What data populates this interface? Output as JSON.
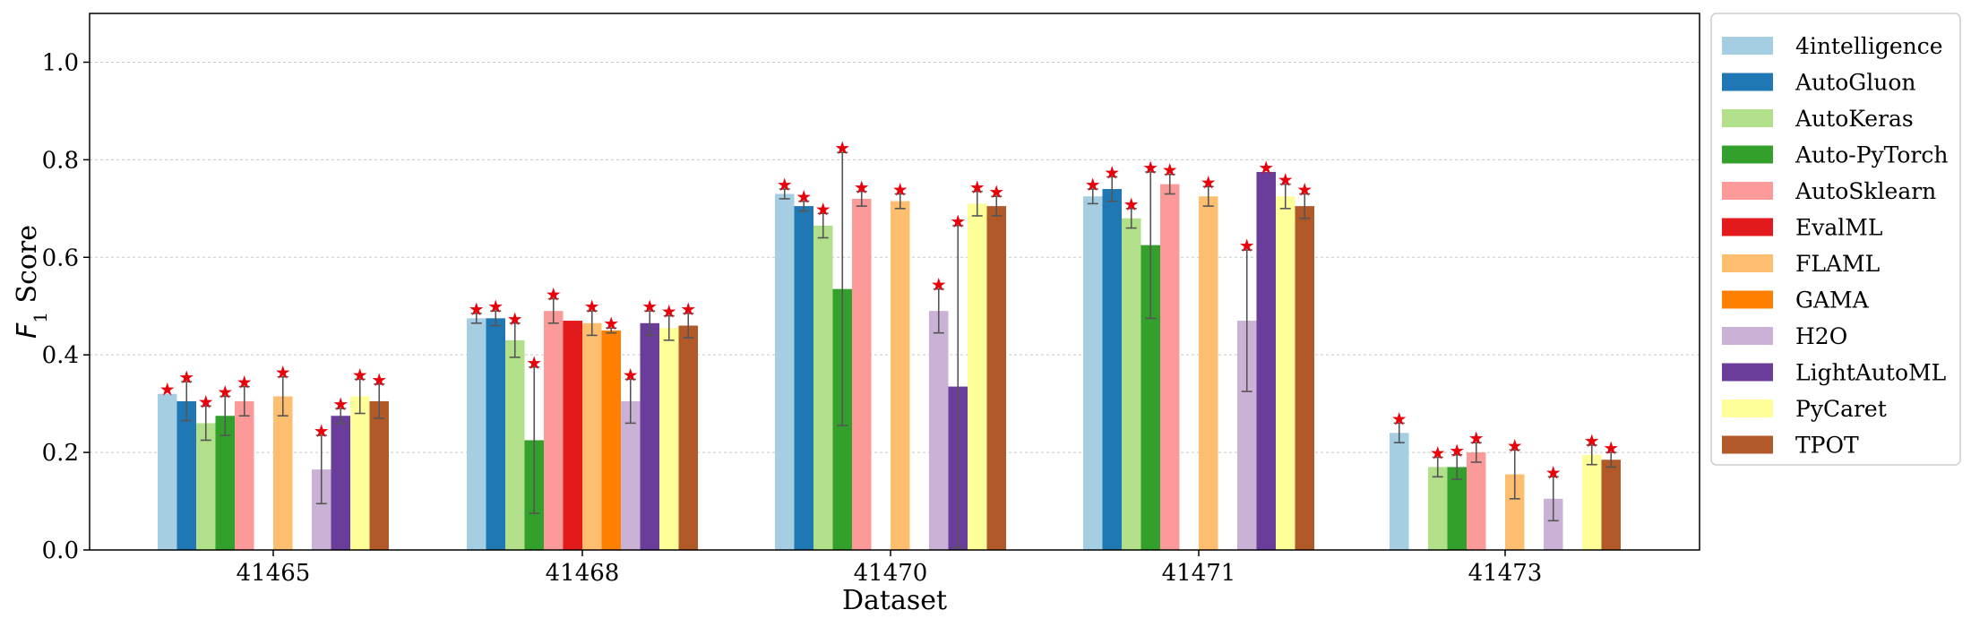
{
  "chart_data": {
    "type": "bar",
    "xlabel": "Dataset",
    "ylabel": "F",
    "ylabel_sub": "1",
    "ylabel_suffix": " Score",
    "ylim": [
      0,
      1.1
    ],
    "yticks": [
      0.0,
      0.2,
      0.4,
      0.6,
      0.8,
      1.0
    ],
    "ytick_labels": [
      "0.0",
      "0.2",
      "0.4",
      "0.6",
      "0.8",
      "1.0"
    ],
    "grid": "horizontal-dashed",
    "legend_position": "right",
    "categories": [
      "41465",
      "41468",
      "41470",
      "41471",
      "41473"
    ],
    "series": [
      {
        "name": "4intelligence",
        "color": "#a6cee3",
        "values": [
          0.32,
          0.475,
          0.73,
          0.725,
          0.24
        ],
        "errors": [
          0.0,
          0.01,
          0.01,
          0.015,
          0.02
        ],
        "stars": [
          true,
          true,
          true,
          true,
          true
        ]
      },
      {
        "name": "AutoGluon",
        "color": "#1f78b4",
        "values": [
          0.305,
          0.475,
          0.705,
          0.74,
          null
        ],
        "errors": [
          0.04,
          0.015,
          0.01,
          0.025,
          null
        ],
        "stars": [
          true,
          true,
          true,
          true,
          false
        ]
      },
      {
        "name": "AutoKeras",
        "color": "#b2df8a",
        "values": [
          0.26,
          0.43,
          0.665,
          0.68,
          0.17
        ],
        "errors": [
          0.035,
          0.035,
          0.025,
          0.02,
          0.02
        ],
        "stars": [
          true,
          true,
          true,
          true,
          true
        ]
      },
      {
        "name": "Auto-PyTorch",
        "color": "#33a02c",
        "values": [
          0.275,
          0.225,
          0.535,
          0.625,
          0.17
        ],
        "errors": [
          0.04,
          0.15,
          0.28,
          0.15,
          0.025
        ],
        "stars": [
          true,
          true,
          true,
          true,
          true
        ]
      },
      {
        "name": "AutoSklearn",
        "color": "#fb9a99",
        "values": [
          0.305,
          0.49,
          0.72,
          0.75,
          0.2
        ],
        "errors": [
          0.03,
          0.025,
          0.015,
          0.02,
          0.02
        ],
        "stars": [
          true,
          true,
          true,
          true,
          true
        ]
      },
      {
        "name": "EvalML",
        "color": "#e31a1c",
        "values": [
          null,
          0.47,
          null,
          null,
          null
        ],
        "errors": [
          null,
          0.0,
          null,
          null,
          null
        ],
        "stars": [
          false,
          false,
          false,
          false,
          false
        ]
      },
      {
        "name": "FLAML",
        "color": "#fdbf6f",
        "values": [
          0.315,
          0.465,
          0.715,
          0.725,
          0.155
        ],
        "errors": [
          0.04,
          0.025,
          0.015,
          0.02,
          0.05
        ],
        "stars": [
          true,
          true,
          true,
          true,
          true
        ]
      },
      {
        "name": "GAMA",
        "color": "#ff7f00",
        "values": [
          null,
          0.45,
          null,
          null,
          null
        ],
        "errors": [
          null,
          0.005,
          null,
          null,
          null
        ],
        "stars": [
          false,
          true,
          false,
          false,
          false
        ]
      },
      {
        "name": "H2O",
        "color": "#cab2d6",
        "values": [
          0.165,
          0.305,
          0.49,
          0.47,
          0.105
        ],
        "errors": [
          0.07,
          0.045,
          0.045,
          0.145,
          0.045
        ],
        "stars": [
          true,
          true,
          true,
          true,
          true
        ]
      },
      {
        "name": "LightAutoML",
        "color": "#6a3d9a",
        "values": [
          0.275,
          0.465,
          0.335,
          0.775,
          null
        ],
        "errors": [
          0.015,
          0.025,
          0.33,
          0.0,
          null
        ],
        "stars": [
          true,
          true,
          true,
          true,
          false
        ]
      },
      {
        "name": "PyCaret",
        "color": "#ffff99",
        "values": [
          0.315,
          0.455,
          0.71,
          0.725,
          0.195
        ],
        "errors": [
          0.035,
          0.025,
          0.025,
          0.025,
          0.02
        ],
        "stars": [
          true,
          true,
          true,
          true,
          true
        ]
      },
      {
        "name": "TPOT",
        "color": "#b15928",
        "values": [
          0.305,
          0.46,
          0.705,
          0.705,
          0.185
        ],
        "errors": [
          0.035,
          0.025,
          0.02,
          0.025,
          0.015
        ],
        "stars": [
          true,
          true,
          true,
          true,
          true
        ]
      }
    ]
  }
}
